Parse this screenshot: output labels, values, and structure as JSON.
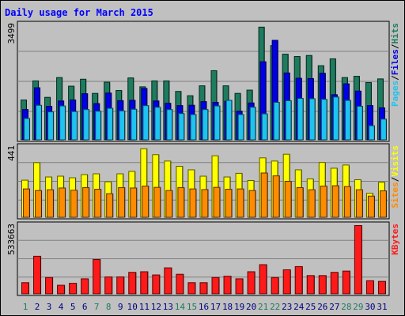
{
  "title": "Daily usage for March 2015",
  "colors": {
    "frame_bg": "#c0c0c0",
    "title": "#0000ff",
    "hits": "#1e7b5e",
    "files": "#0000e6",
    "pages": "#1ec3f0",
    "visits": "#ffff00",
    "sites": "#ff8c00",
    "kbytes": "#ff1a1a",
    "weekend_label": "#1e7b5e",
    "weekday_label": "#000080"
  },
  "chart_data": {
    "type": "bar",
    "x": [
      1,
      2,
      3,
      4,
      5,
      6,
      7,
      8,
      9,
      10,
      11,
      12,
      13,
      14,
      15,
      16,
      17,
      18,
      19,
      20,
      21,
      22,
      23,
      24,
      25,
      26,
      27,
      28,
      29,
      30,
      31
    ],
    "weekend_days": [
      1,
      7,
      8,
      14,
      15,
      21,
      22,
      28,
      29
    ],
    "panels": [
      {
        "max_label": "3499",
        "ymax": 3499,
        "legend": [
          "Pages",
          "/",
          "Files",
          "/",
          "Hits"
        ],
        "series": [
          {
            "name": "Hits",
            "values": [
              1220,
              1800,
              1300,
              1900,
              1640,
              1850,
              1420,
              1760,
              1510,
              1890,
              1620,
              1800,
              1800,
              1480,
              1350,
              1650,
              2110,
              1650,
              1420,
              1520,
              3430,
              2870,
              2610,
              2540,
              2570,
              2260,
              2470,
              1900,
              1940,
              1750,
              1860
            ]
          },
          {
            "name": "Files",
            "values": [
              930,
              1590,
              1030,
              1190,
              1220,
              1410,
              1110,
              1430,
              1200,
              1210,
              1570,
              1190,
              1120,
              1050,
              1060,
              1170,
              1150,
              1180,
              880,
              1130,
              2380,
              3030,
              2040,
              1880,
              1870,
              2030,
              1380,
              1710,
              1490,
              1050,
              980
            ]
          },
          {
            "name": "Pages",
            "values": [
              660,
              1060,
              860,
              1040,
              870,
              930,
              880,
              970,
              890,
              940,
              1050,
              1000,
              930,
              810,
              780,
              930,
              1040,
              1210,
              780,
              1000,
              800,
              1150,
              1200,
              1270,
              1260,
              1240,
              1310,
              1210,
              1030,
              440,
              640
            ]
          }
        ]
      },
      {
        "max_label": "441",
        "ymax": 441,
        "legend": [
          "Sites",
          "/",
          "Visits"
        ],
        "series": [
          {
            "name": "Visits",
            "values": [
              235,
              345,
              255,
              260,
              250,
              270,
              275,
              225,
              275,
              290,
              432,
              395,
              355,
              322,
              300,
              260,
              388,
              255,
              278,
              233,
              375,
              355,
              398,
              300,
              243,
              346,
              310,
              330,
              238,
              153,
              222
            ]
          },
          {
            "name": "Sites",
            "values": [
              180,
              170,
              175,
              186,
              172,
              188,
              178,
              150,
              188,
              186,
              198,
              190,
              170,
              188,
              180,
              176,
              190,
              178,
              180,
              170,
              280,
              262,
              228,
              188,
              175,
              198,
              200,
              195,
              175,
              135,
              168
            ]
          }
        ]
      },
      {
        "max_label": "533663",
        "ymax": 533663,
        "legend": [
          "KBytes"
        ],
        "series": [
          {
            "name": "KBytes",
            "values": [
              90000,
              295000,
              130000,
              70000,
              85000,
              120000,
              270000,
              135000,
              135000,
              170000,
              175000,
              150000,
              205000,
              155000,
              90000,
              90000,
              130000,
              140000,
              120000,
              175000,
              230000,
              130000,
              190000,
              215000,
              145000,
              145000,
              170000,
              180000,
              533663,
              105000,
              100000
            ]
          }
        ]
      }
    ]
  }
}
